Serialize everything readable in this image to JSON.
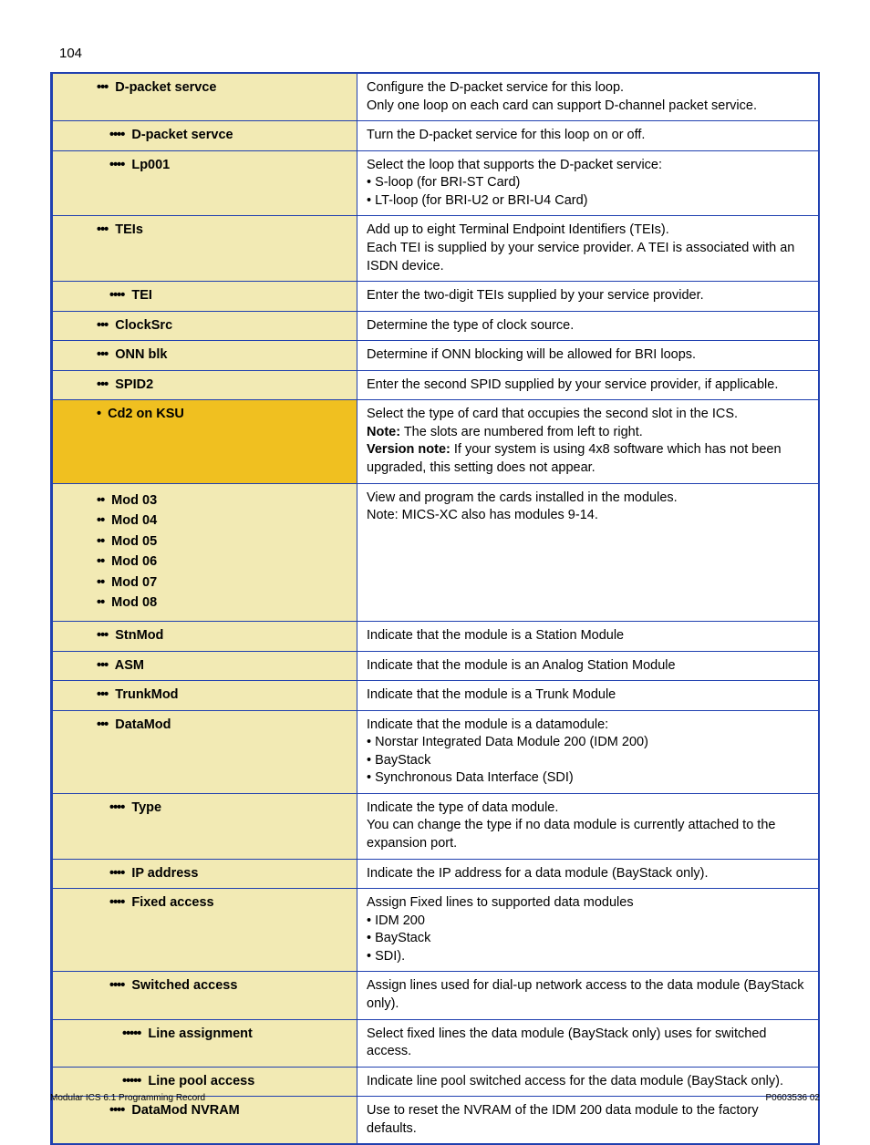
{
  "page_number": "104",
  "colors": {
    "border": "#2040b0",
    "bg_light": "#f2eab4",
    "bg_dark": "#f0c020"
  },
  "rows": [
    {
      "bullets": "•••",
      "label": "D-packet servce",
      "indent": 1,
      "bg": "light",
      "desc": "Configure the D-packet service for this loop.\nOnly one loop on each card can support D-channel packet service."
    },
    {
      "bullets": "••••",
      "label": "D-packet servce",
      "indent": 2,
      "bg": "light",
      "desc": "Turn the D-packet service for this loop on or off."
    },
    {
      "bullets": "••••",
      "label": "Lp001",
      "indent": 2,
      "bg": "light",
      "desc": "Select the loop that supports the D-packet service:\n• S-loop (for BRI-ST Card)\n• LT-loop (for BRI-U2 or BRI-U4 Card)"
    },
    {
      "bullets": "•••",
      "label": "TEIs",
      "indent": 1,
      "bg": "light",
      "desc": "Add up to eight Terminal Endpoint Identifiers (TEIs).\nEach TEI is supplied by your service provider. A TEI is associated with an ISDN device."
    },
    {
      "bullets": "••••",
      "label": "TEI",
      "indent": 2,
      "bg": "light",
      "desc": "Enter the two-digit TEIs supplied by your service provider."
    },
    {
      "bullets": "•••",
      "label": "ClockSrc",
      "indent": 1,
      "bg": "light",
      "desc": "Determine the type of clock  source."
    },
    {
      "bullets": "•••",
      "label": "ONN blk",
      "indent": 1,
      "bg": "light",
      "desc": "Determine if ONN blocking will be allowed for BRI loops."
    },
    {
      "bullets": "•••",
      "label": "SPID2",
      "indent": 1,
      "bg": "light",
      "desc": "Enter the second SPID supplied by your service provider, if applicable."
    },
    {
      "bullets": "•",
      "label": "Cd2 on KSU",
      "indent": 1,
      "bg": "dark",
      "desc_rich": [
        {
          "text": "Select the type of card that occupies the second slot in the ICS."
        },
        {
          "prefix_bold": "Note:",
          "text": " The slots are numbered from left to right."
        },
        {
          "prefix_bold": "Version note:",
          "text": " If your system is using 4x8 software which has not been upgraded, this setting does not appear."
        }
      ]
    },
    {
      "multi_labels": [
        {
          "bullets": "••",
          "label": "Mod 03"
        },
        {
          "bullets": "••",
          "label": "Mod 04"
        },
        {
          "bullets": "••",
          "label": "Mod 05"
        },
        {
          "bullets": "••",
          "label": "Mod 06"
        },
        {
          "bullets": "••",
          "label": "Mod 07"
        },
        {
          "bullets": "••",
          "label": "Mod 08"
        }
      ],
      "indent": 1,
      "bg": "light",
      "desc": "View and program the cards installed in the modules.\nNote: MICS-XC also has modules 9-14."
    },
    {
      "bullets": "•••",
      "label": "StnMod",
      "indent": 1,
      "bg": "light",
      "desc": "Indicate that the module is a Station Module"
    },
    {
      "bullets": "•••",
      "label": "ASM",
      "indent": 1,
      "bg": "light",
      "desc": "Indicate that the module is an Analog Station Module"
    },
    {
      "bullets": "•••",
      "label": "TrunkMod",
      "indent": 1,
      "bg": "light",
      "desc": "Indicate that the module is a Trunk Module"
    },
    {
      "bullets": "•••",
      "label": "DataMod",
      "indent": 1,
      "bg": "light",
      "desc": "Indicate that the module is a datamodule:\n• Norstar Integrated Data Module 200 (IDM 200)\n• BayStack\n• Synchronous Data Interface (SDI)"
    },
    {
      "bullets": "••••",
      "label": "Type",
      "indent": 2,
      "bg": "light",
      "desc": "Indicate the type of data module.\nYou can change the type if no data module is currently attached to the expansion port."
    },
    {
      "bullets": "••••",
      "label": "IP address",
      "indent": 2,
      "bg": "light",
      "desc": "Indicate the IP address for a data module (BayStack only)."
    },
    {
      "bullets": "••••",
      "label": "Fixed access",
      "indent": 2,
      "bg": "light",
      "desc": "Assign Fixed lines to supported data modules\n• IDM 200\n• BayStack\n• SDI)."
    },
    {
      "bullets": "••••",
      "label": "Switched access",
      "indent": 2,
      "bg": "light",
      "desc": "Assign lines used for dial-up network access to the data module (BayStack only)."
    },
    {
      "bullets": "•••••",
      "label": "Line assignment",
      "indent": 3,
      "bg": "light",
      "desc": "Select fixed lines the data module (BayStack only) uses for switched access."
    },
    {
      "bullets": "•••••",
      "label": "Line pool access",
      "indent": 3,
      "bg": "light",
      "desc": "Indicate line pool switched access for the data module (BayStack only)."
    },
    {
      "bullets": "••••",
      "label": "DataMod NVRAM",
      "indent": 2,
      "bg": "light",
      "desc": "Use to reset the NVRAM of the IDM 200 data module to the factory defaults."
    }
  ],
  "footer": {
    "left": "Modular ICS 6.1 Programming Record",
    "right": "P0603536  02"
  }
}
